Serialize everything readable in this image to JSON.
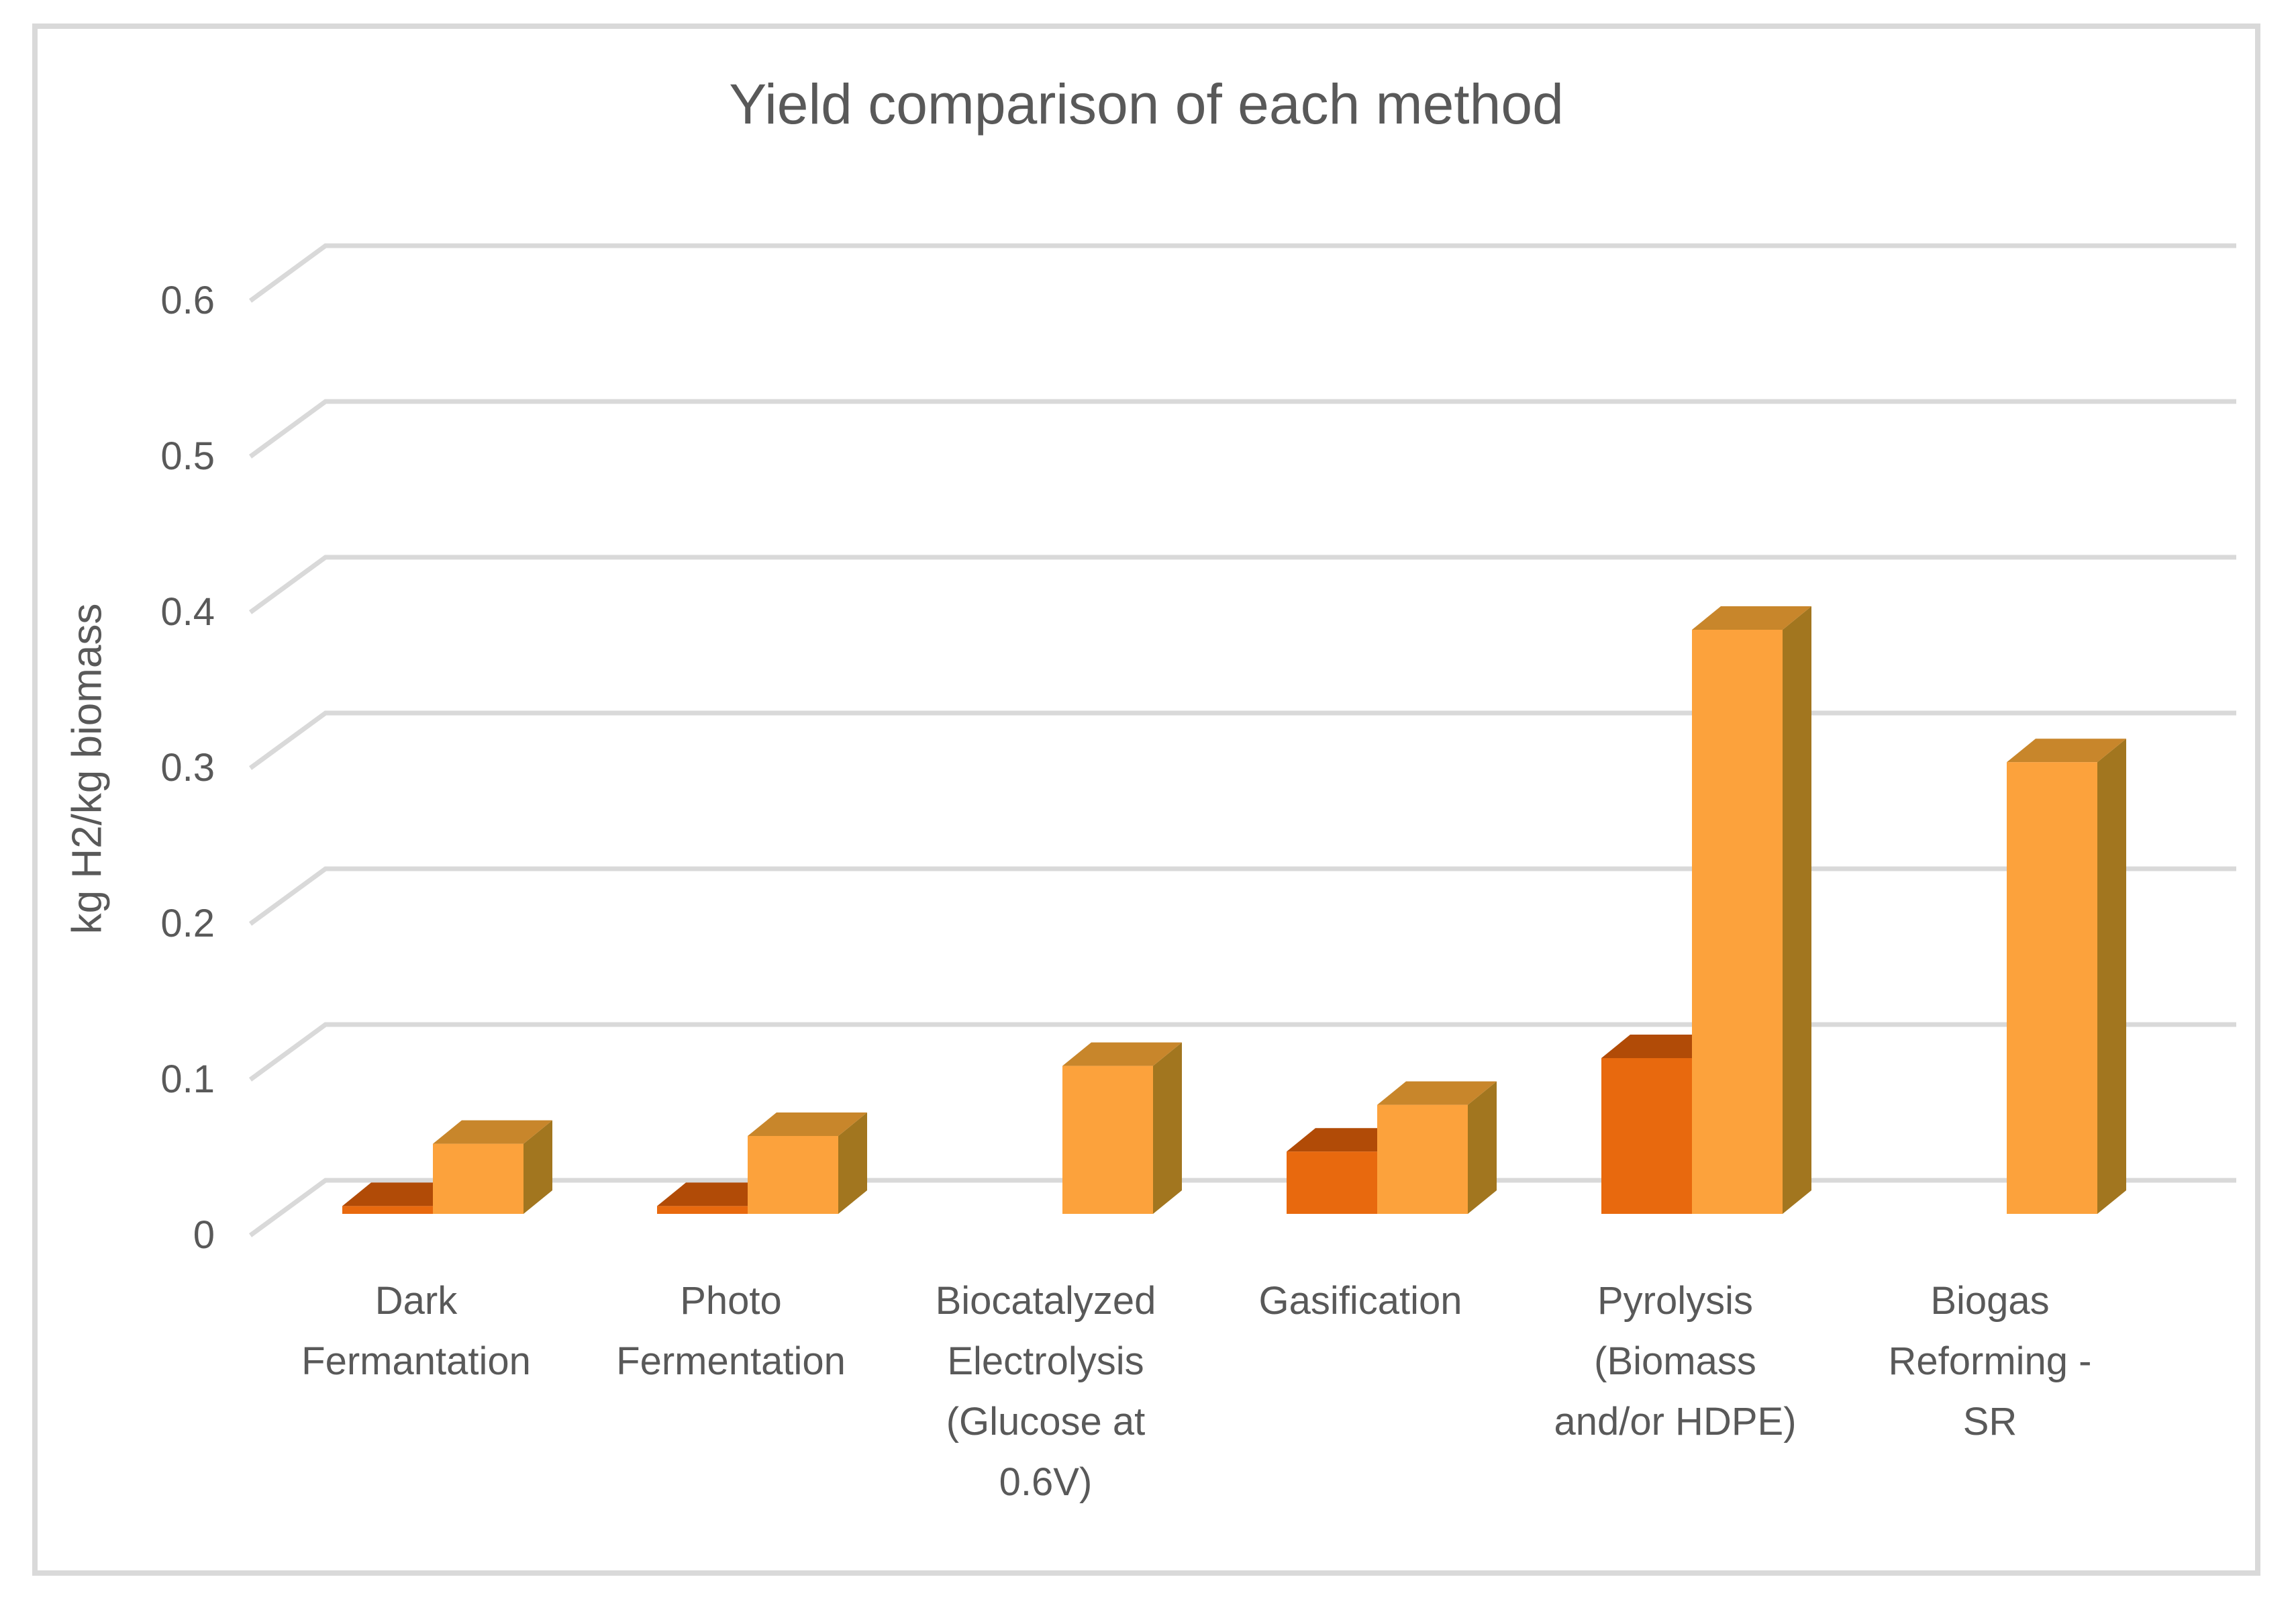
{
  "window": {
    "background": "#FFFFFF",
    "border_color": "#D9D9D9"
  },
  "chart_data": {
    "type": "bar",
    "projection": "3d",
    "title": "Yield comparison of each method",
    "ylabel": "kg H2/kg biomass",
    "xlabel": "",
    "ylim": [
      0,
      0.65
    ],
    "ytick_values": [
      0,
      0.1,
      0.2,
      0.3,
      0.4,
      0.5,
      0.6
    ],
    "ytick_labels": [
      "0",
      "0.1",
      "0.2",
      "0.3",
      "0.4",
      "0.5",
      "0.6"
    ],
    "grid": true,
    "legend": false,
    "text_color": "#595959",
    "grid_color": "#D9D9D9",
    "categories": [
      "Dark Fermantation",
      "Photo Fermentation",
      "Biocatalyzed Electrolysis (Glucose at 0.6V)",
      "Gasification",
      "Pyrolysis (Biomass and/or HDPE)",
      "Biogas Reforming - SR"
    ],
    "category_label_lines": [
      [
        "Dark",
        "Fermantation"
      ],
      [
        "Photo",
        "Fermentation"
      ],
      [
        "Biocatalyzed",
        "Electrolysis",
        "(Glucose at",
        "0.6V)"
      ],
      [
        "Gasification"
      ],
      [
        "Pyrolysis",
        "(Biomass",
        "and/or HDPE)"
      ],
      [
        "Biogas",
        "Reforming -",
        "SR"
      ]
    ],
    "series": [
      {
        "id": "series-1-front",
        "color": "#E8690E",
        "top_color": "#B14B07",
        "side_color": "#C25607",
        "values": [
          0.005,
          0.005,
          0,
          0.04,
          0.1,
          0
        ]
      },
      {
        "id": "series-2-back",
        "color": "#FCA23C",
        "top_color": "#C8862B",
        "side_color": "#A2761F",
        "values": [
          0.045,
          0.05,
          0.095,
          0.07,
          0.375,
          0.29
        ]
      }
    ]
  }
}
